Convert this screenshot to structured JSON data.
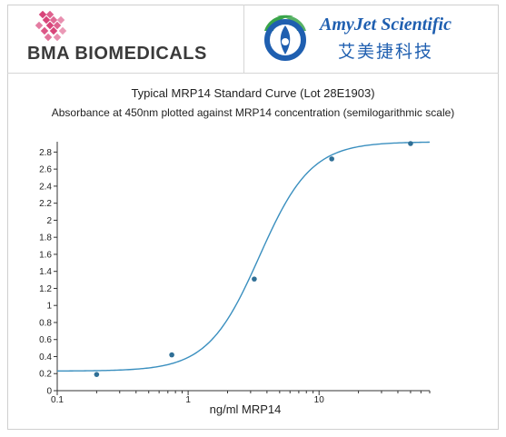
{
  "header": {
    "left_logo_text": "BMA BIOMEDICALS",
    "right_logo_en": "AmyJet Scientific",
    "right_logo_cn": "艾美捷科技",
    "colors": {
      "bma_pink": "#d8457a",
      "amy_blue": "#1f5fb0",
      "amy_green": "#3aa54a"
    }
  },
  "chart_data": {
    "type": "scatter",
    "title": "Typical MRP14 Standard Curve (Lot 28E1903)",
    "subtitle": "Absorbance at 450nm plotted against MRP14 concentration (semilogarithmic scale)",
    "xlabel": "ng/ml MRP14",
    "ylabel": "",
    "xscale": "log",
    "xlim": [
      0.1,
      70
    ],
    "ylim": [
      0,
      2.9
    ],
    "xticks": [
      0.1,
      1,
      10
    ],
    "xticklabels": [
      "0.1",
      "1",
      "10"
    ],
    "yticks": [
      0,
      0.2,
      0.4,
      0.6,
      0.8,
      1,
      1.2,
      1.4,
      1.6,
      1.8,
      2,
      2.2,
      2.4,
      2.6,
      2.8
    ],
    "yticklabels": [
      "0",
      "0.2",
      "0.4",
      "0.6",
      "0.8",
      "1",
      "1.2",
      "1.4",
      "1.6",
      "1.8",
      "2",
      "2.2",
      "2.4",
      "2.6",
      "2.8"
    ],
    "points": {
      "x": [
        0.2,
        0.75,
        3.2,
        12.5,
        50
      ],
      "y": [
        0.19,
        0.42,
        1.31,
        2.72,
        2.9
      ]
    },
    "fit_curve": {
      "model": "4PL",
      "bottom": 0.23,
      "top": 2.92,
      "ec50": 3.5,
      "hill": 2.2
    },
    "colors": {
      "points": "#2f6f96",
      "curve": "#3a8fbf",
      "axes": "#333333"
    },
    "grid": false,
    "legend": "none"
  }
}
